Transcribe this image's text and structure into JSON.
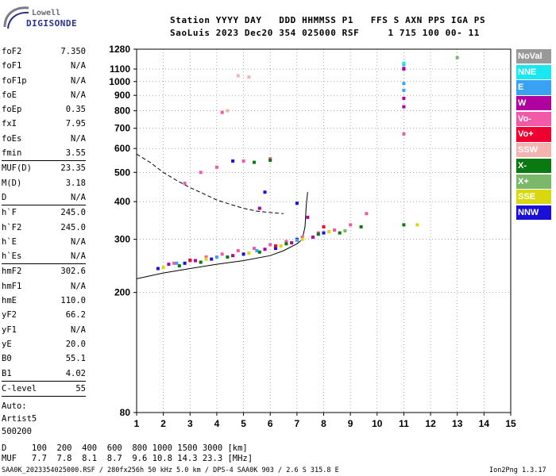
{
  "logo": {
    "line1": "Lowell",
    "line2": "DIGISONDE"
  },
  "header": {
    "labels": "Station YYYY DAY   DDD HHMMSS P1   FFS S AXN PPS IGA PS",
    "values": "SaoLuis 2023 Dec20 354 025000 RSF     1 715 100 00- 11"
  },
  "params": {
    "group1": [
      {
        "label": "foF2",
        "value": "7.350"
      },
      {
        "label": "foF1",
        "value": "N/A"
      },
      {
        "label": "foF1p",
        "value": "N/A"
      },
      {
        "label": "foE",
        "value": "N/A"
      },
      {
        "label": "foEp",
        "value": "0.35"
      },
      {
        "label": "fxI",
        "value": "7.95"
      },
      {
        "label": "foEs",
        "value": "N/A"
      },
      {
        "label": "fmin",
        "value": "3.55"
      }
    ],
    "group2": [
      {
        "label": "MUF(D)",
        "value": "23.35"
      },
      {
        "label": "M(D)",
        "value": "3.18"
      },
      {
        "label": "D",
        "value": "N/A"
      }
    ],
    "group3": [
      {
        "label": "h`F",
        "value": "245.0"
      },
      {
        "label": "h`F2",
        "value": "245.0"
      },
      {
        "label": "h`E",
        "value": "N/A"
      },
      {
        "label": "h`Es",
        "value": "N/A"
      }
    ],
    "group4": [
      {
        "label": "hmF2",
        "value": "302.6"
      },
      {
        "label": "hmF1",
        "value": "N/A"
      },
      {
        "label": "hmE",
        "value": "110.0"
      },
      {
        "label": "yF2",
        "value": "66.2"
      },
      {
        "label": "yF1",
        "value": "N/A"
      },
      {
        "label": "yE",
        "value": "20.0"
      },
      {
        "label": "B0",
        "value": "55.1"
      },
      {
        "label": "B1",
        "value": "4.02"
      }
    ],
    "group5": [
      {
        "label": "C-level",
        "value": "55"
      }
    ],
    "auto": [
      "Auto:",
      "Artist5",
      "500200"
    ]
  },
  "legend": [
    {
      "label": "NoVal",
      "color": "#999999"
    },
    {
      "label": "NNE",
      "color": "#19e8f0"
    },
    {
      "label": "E",
      "color": "#3aa2f2"
    },
    {
      "label": "W",
      "color": "#b0009f"
    },
    {
      "label": "Vo-",
      "color": "#f25aa8"
    },
    {
      "label": "Vo+",
      "color": "#ee0030"
    },
    {
      "label": "SSW",
      "color": "#f4b3b0"
    },
    {
      "label": "X-",
      "color": "#0a7a10"
    },
    {
      "label": "X+",
      "color": "#7ab86a"
    },
    {
      "label": "SSE",
      "color": "#d8d80e"
    },
    {
      "label": "NNW",
      "color": "#1a0fd6"
    }
  ],
  "bottom": {
    "d_row": "D     100  200  400  600  800 1000 1500 3000 [km]",
    "muf_row": "MUF   7.7  7.8  8.1  8.7  9.6 10.8 14.3 23.3 [MHz]",
    "footer_left": "SAA0K_2023354025000.RSF / 280fx256h 50 kHz 5.0 km / DPS-4 SAA0K 903 / 2.6 S 315.8 E",
    "footer_right": "Ion2Png 1.3.17"
  },
  "chart_data": {
    "type": "scatter",
    "title": "",
    "xlabel": "",
    "ylabel": "",
    "xlim": [
      1,
      15
    ],
    "ylim": [
      80,
      1280
    ],
    "y_scale": "log",
    "x_ticks": [
      1,
      2,
      3,
      4,
      5,
      6,
      7,
      8,
      9,
      10,
      11,
      12,
      13,
      14,
      15
    ],
    "y_ticks": [
      80,
      200,
      300,
      400,
      500,
      600,
      700,
      800,
      900,
      1000,
      1100,
      1280
    ],
    "grid": "dotted",
    "legend_position": "right",
    "series": [
      {
        "name": "Vo-",
        "points": [
          [
            2.4,
            250
          ],
          [
            3.0,
            255
          ],
          [
            3.6,
            262
          ],
          [
            4.2,
            268
          ],
          [
            4.8,
            275
          ],
          [
            5.4,
            280
          ],
          [
            6.0,
            288
          ],
          [
            6.6,
            295
          ],
          [
            7.2,
            305
          ],
          [
            7.8,
            315
          ],
          [
            8.4,
            322
          ],
          [
            9.0,
            335
          ],
          [
            9.6,
            365
          ],
          [
            4.0,
            520
          ],
          [
            5.0,
            545
          ],
          [
            6.0,
            555
          ],
          [
            2.8,
            460
          ],
          [
            3.4,
            500
          ],
          [
            4.2,
            790
          ],
          [
            11.0,
            670
          ]
        ]
      },
      {
        "name": "X-",
        "points": [
          [
            2.6,
            245
          ],
          [
            3.4,
            252
          ],
          [
            4.4,
            262
          ],
          [
            5.6,
            272
          ],
          [
            6.6,
            290
          ],
          [
            7.8,
            312
          ],
          [
            8.6,
            315
          ],
          [
            9.4,
            330
          ],
          [
            5.4,
            540
          ],
          [
            6.0,
            548
          ],
          [
            11.0,
            335
          ]
        ]
      },
      {
        "name": "NNW",
        "points": [
          [
            1.8,
            240
          ],
          [
            2.8,
            250
          ],
          [
            3.8,
            258
          ],
          [
            5.0,
            268
          ],
          [
            6.2,
            280
          ],
          [
            7.0,
            300
          ],
          [
            8.0,
            315
          ],
          [
            5.8,
            430
          ],
          [
            7.0,
            395
          ],
          [
            4.6,
            545
          ],
          [
            11.0,
            1105
          ]
        ]
      },
      {
        "name": "W",
        "points": [
          [
            2.2,
            248
          ],
          [
            3.2,
            255
          ],
          [
            4.6,
            265
          ],
          [
            5.8,
            278
          ],
          [
            6.8,
            292
          ],
          [
            7.6,
            305
          ],
          [
            5.6,
            380
          ],
          [
            7.4,
            355
          ],
          [
            11.0,
            825
          ],
          [
            11.0,
            880
          ],
          [
            11.0,
            1100
          ]
        ]
      },
      {
        "name": "SSE",
        "points": [
          [
            2.0,
            242
          ],
          [
            3.6,
            258
          ],
          [
            5.2,
            270
          ],
          [
            6.4,
            285
          ],
          [
            7.2,
            300
          ],
          [
            8.2,
            318
          ],
          [
            11.5,
            335
          ]
        ]
      },
      {
        "name": "E",
        "points": [
          [
            2.5,
            250
          ],
          [
            4.0,
            262
          ],
          [
            5.5,
            275
          ],
          [
            7.0,
            298
          ],
          [
            11.0,
            935
          ],
          [
            11.0,
            985
          ],
          [
            11.0,
            1140
          ]
        ]
      },
      {
        "name": "NNE",
        "points": [
          [
            11.0,
            1150
          ]
        ]
      },
      {
        "name": "X+",
        "points": [
          [
            13.0,
            1200
          ],
          [
            8.8,
            320
          ]
        ]
      },
      {
        "name": "Vo+",
        "points": [
          [
            3.0,
            256
          ],
          [
            6.2,
            285
          ],
          [
            8.0,
            330
          ]
        ]
      },
      {
        "name": "SSW",
        "points": [
          [
            4.4,
            800
          ],
          [
            4.8,
            1045
          ],
          [
            5.2,
            1035
          ]
        ]
      }
    ],
    "curves": [
      {
        "name": "dashed",
        "points": [
          [
            1,
            575
          ],
          [
            1.5,
            540
          ],
          [
            2.0,
            500
          ],
          [
            2.5,
            470
          ],
          [
            3.0,
            445
          ],
          [
            3.5,
            425
          ],
          [
            4.0,
            405
          ],
          [
            4.5,
            392
          ],
          [
            5.0,
            380
          ],
          [
            5.5,
            372
          ],
          [
            6.0,
            368
          ],
          [
            6.5,
            365
          ]
        ]
      },
      {
        "name": "solid",
        "points": [
          [
            1,
            222
          ],
          [
            2.0,
            232
          ],
          [
            3.0,
            240
          ],
          [
            4.0,
            248
          ],
          [
            5.0,
            255
          ],
          [
            6.0,
            265
          ],
          [
            6.5,
            275
          ],
          [
            7.0,
            290
          ],
          [
            7.2,
            300
          ],
          [
            7.3,
            330
          ],
          [
            7.35,
            390
          ],
          [
            7.4,
            430
          ]
        ]
      }
    ]
  }
}
